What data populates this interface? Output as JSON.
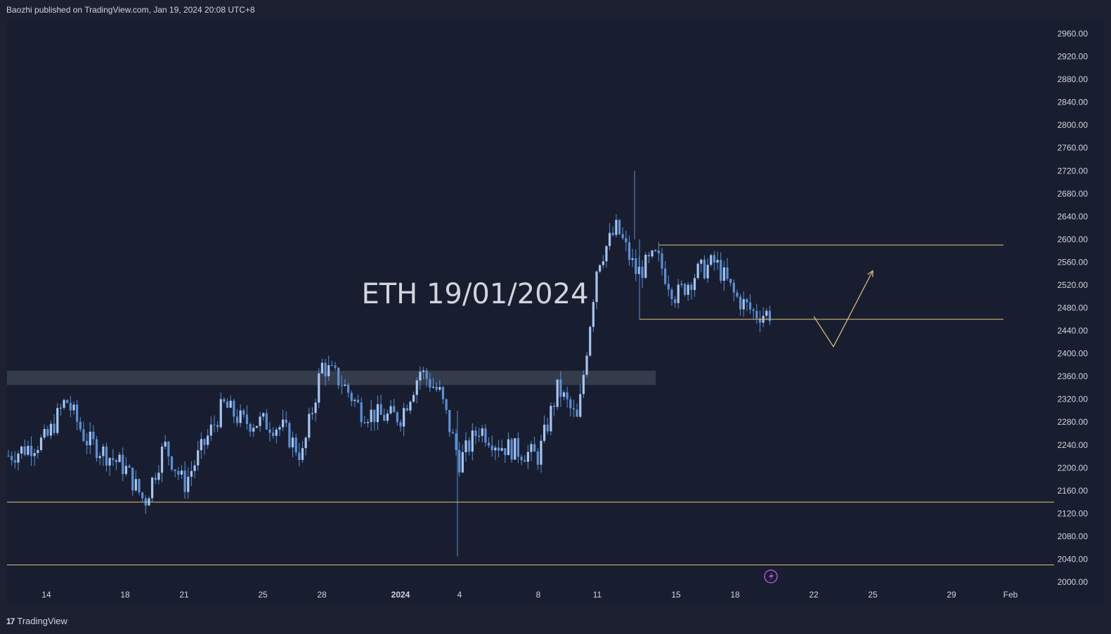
{
  "header": {
    "published_text": "Baozhi published on TradingView.com, Jan 19, 2024 20:08 UTC+8"
  },
  "footer": {
    "brand": "TradingView",
    "logo_icon": "tradingview-logo-icon"
  },
  "colors": {
    "background": "#1c2030",
    "plot_background": "#181e2f",
    "candle": "#5b8fd6",
    "level_line": "#e8c47e",
    "zone": "#3a4150",
    "event_icon": "#b44cd8"
  },
  "chart_data": {
    "type": "candlestick",
    "symbol": "ETH",
    "title": "ETH 19/01/2024",
    "y_ticks": [
      "2960.00",
      "2920.00",
      "2880.00",
      "2840.00",
      "2800.00",
      "2760.00",
      "2720.00",
      "2680.00",
      "2640.00",
      "2600.00",
      "2560.00",
      "2520.00",
      "2480.00",
      "2440.00",
      "2400.00",
      "2360.00",
      "2320.00",
      "2280.00",
      "2240.00",
      "2200.00",
      "2160.00",
      "2120.00",
      "2080.00",
      "2040.00",
      "2000.00"
    ],
    "ylim": [
      2000,
      2960
    ],
    "x_ticks": [
      "14",
      "18",
      "21",
      "25",
      "28",
      "2024",
      "4",
      "8",
      "11",
      "15",
      "18",
      "22",
      "25",
      "29",
      "Feb"
    ],
    "x_range_days": [
      "2023-12-12",
      "2024-02-01"
    ],
    "grid": false,
    "approx_close_path": [
      [
        "2023-12-12",
        2220
      ],
      [
        "2023-12-14",
        2250
      ],
      [
        "2023-12-15",
        2320
      ],
      [
        "2023-12-16",
        2250
      ],
      [
        "2023-12-18",
        2200
      ],
      [
        "2023-12-19",
        2140
      ],
      [
        "2023-12-20",
        2240
      ],
      [
        "2023-12-21",
        2170
      ],
      [
        "2023-12-22",
        2240
      ],
      [
        "2023-12-23",
        2310
      ],
      [
        "2023-12-24",
        2280
      ],
      [
        "2023-12-25",
        2280
      ],
      [
        "2023-12-26",
        2270
      ],
      [
        "2023-12-27",
        2220
      ],
      [
        "2023-12-28",
        2380
      ],
      [
        "2023-12-29",
        2350
      ],
      [
        "2023-12-30",
        2300
      ],
      [
        "2023-12-31",
        2290
      ],
      [
        "2024-01-01",
        2290
      ],
      [
        "2024-01-02",
        2370
      ],
      [
        "2024-01-03",
        2330
      ],
      [
        "2024-01-04",
        2210
      ],
      [
        "2024-01-05",
        2270
      ],
      [
        "2024-01-06",
        2240
      ],
      [
        "2024-01-07",
        2230
      ],
      [
        "2024-01-08",
        2220
      ],
      [
        "2024-01-09",
        2340
      ],
      [
        "2024-01-10",
        2280
      ],
      [
        "2024-01-11",
        2560
      ],
      [
        "2024-01-12",
        2620
      ],
      [
        "2024-01-13",
        2540
      ],
      [
        "2024-01-14",
        2570
      ],
      [
        "2024-01-15",
        2500
      ],
      [
        "2024-01-16",
        2540
      ],
      [
        "2024-01-17",
        2560
      ],
      [
        "2024-01-18",
        2500
      ],
      [
        "2024-01-19",
        2470
      ]
    ],
    "levels": [
      2590,
      2460,
      2140,
      2030
    ],
    "zone": [
      2345,
      2370
    ],
    "projection": [
      [
        "2024-01-22",
        2465
      ],
      [
        "2024-01-23",
        2412
      ],
      [
        "2024-01-25",
        2545
      ]
    ]
  }
}
